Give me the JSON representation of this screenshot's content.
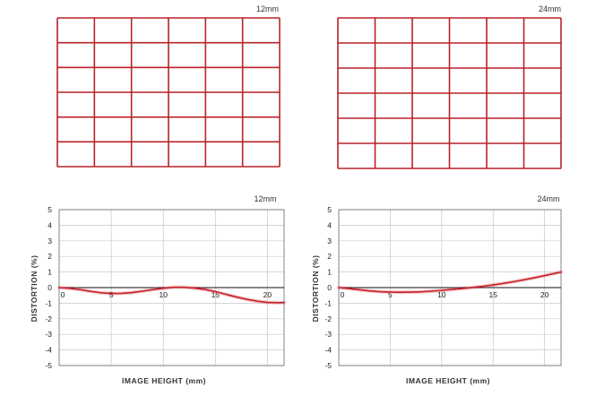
{
  "chart_data": [
    {
      "type": "line",
      "title": "12mm",
      "xlabel": "IMAGE HEIGHT (mm)",
      "ylabel": "DISTORTION (%)",
      "xlim": [
        0,
        21.6
      ],
      "ylim": [
        -5,
        5
      ],
      "x_ticks": [
        0,
        5,
        10,
        15,
        20
      ],
      "y_ticks": [
        5,
        4,
        3,
        2,
        1,
        0,
        -1,
        -2,
        -3,
        -4,
        -5
      ],
      "grid": true,
      "series": [
        {
          "color": "#c8202a",
          "x": [
            0,
            1,
            2,
            3,
            4,
            5,
            6,
            7,
            8,
            9,
            10,
            11,
            12,
            13,
            14,
            15,
            16,
            17,
            18,
            19,
            20,
            21,
            21.6
          ],
          "y": [
            0,
            -0.05,
            -0.13,
            -0.24,
            -0.33,
            -0.38,
            -0.37,
            -0.32,
            -0.23,
            -0.13,
            -0.04,
            0.02,
            0.02,
            -0.03,
            -0.12,
            -0.26,
            -0.43,
            -0.6,
            -0.75,
            -0.87,
            -0.95,
            -0.97,
            -0.96
          ]
        }
      ]
    },
    {
      "type": "line",
      "title": "24mm",
      "xlabel": "IMAGE HEIGHT (mm)",
      "ylabel": "DISTORTION (%)",
      "xlim": [
        0,
        21.6
      ],
      "ylim": [
        -5,
        5
      ],
      "x_ticks": [
        0,
        5,
        10,
        15,
        20
      ],
      "y_ticks": [
        5,
        4,
        3,
        2,
        1,
        0,
        -1,
        -2,
        -3,
        -4,
        -5
      ],
      "grid": true,
      "series": [
        {
          "color": "#c8202a",
          "x": [
            0,
            1,
            2,
            3,
            4,
            5,
            6,
            7,
            8,
            9,
            10,
            11,
            12,
            13,
            14,
            15,
            16,
            17,
            18,
            19,
            20,
            21,
            21.6
          ],
          "y": [
            0,
            -0.06,
            -0.14,
            -0.21,
            -0.26,
            -0.29,
            -0.3,
            -0.29,
            -0.27,
            -0.23,
            -0.18,
            -0.12,
            -0.06,
            0.01,
            0.08,
            0.17,
            0.27,
            0.38,
            0.5,
            0.63,
            0.77,
            0.91,
            1.0
          ]
        }
      ]
    }
  ],
  "grid_panels": [
    {
      "title": "12mm",
      "line_color": "#b8222a",
      "rows": 6,
      "cols": 6
    },
    {
      "title": "24mm",
      "line_color": "#b8222a",
      "rows": 6,
      "cols": 6
    }
  ]
}
